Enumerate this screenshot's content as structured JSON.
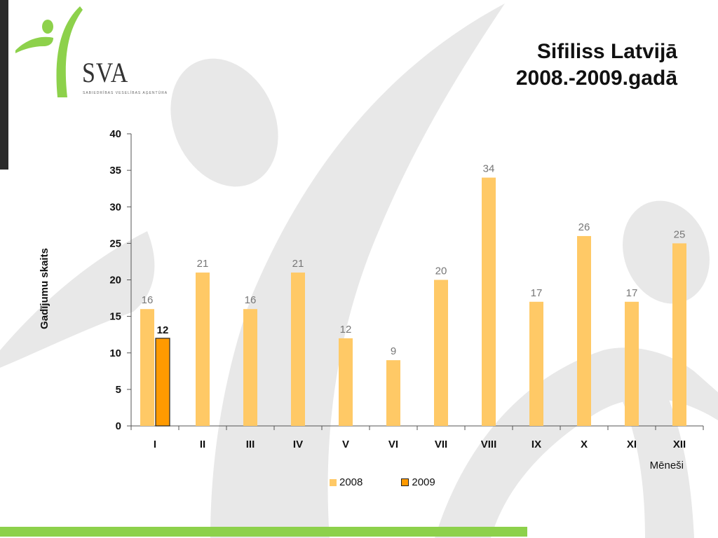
{
  "logo": {
    "text": "SVA",
    "subtitle": "SABIEDRĪBAS VESELĪBAS AĢENTŪRA",
    "accent": "#8dd14b"
  },
  "title": {
    "line1": "Sifiliss Latvijā",
    "line2": "2008.-2009.gadā"
  },
  "colors": {
    "series_2008": "#ffc966",
    "series_2009": "#ff9a00",
    "background_figure": "#e8e8e8"
  },
  "chart_data": {
    "type": "bar",
    "categories": [
      "I",
      "II",
      "III",
      "IV",
      "V",
      "VI",
      "VII",
      "VIII",
      "IX",
      "X",
      "XI",
      "XII"
    ],
    "series": [
      {
        "name": "2008",
        "values": [
          16,
          21,
          16,
          21,
          12,
          9,
          20,
          34,
          17,
          26,
          17,
          25
        ]
      },
      {
        "name": "2009",
        "values": [
          12,
          null,
          null,
          null,
          null,
          null,
          null,
          null,
          null,
          null,
          null,
          null
        ]
      }
    ],
    "title": "Sifiliss Latvijā 2008.-2009.gadā",
    "xlabel": "Mēneši",
    "ylabel": "Gadījumu skaits",
    "ylim": [
      0,
      40
    ],
    "yticks": [
      0,
      5,
      10,
      15,
      20,
      25,
      30,
      35,
      40
    ],
    "legend_position": "bottom"
  }
}
